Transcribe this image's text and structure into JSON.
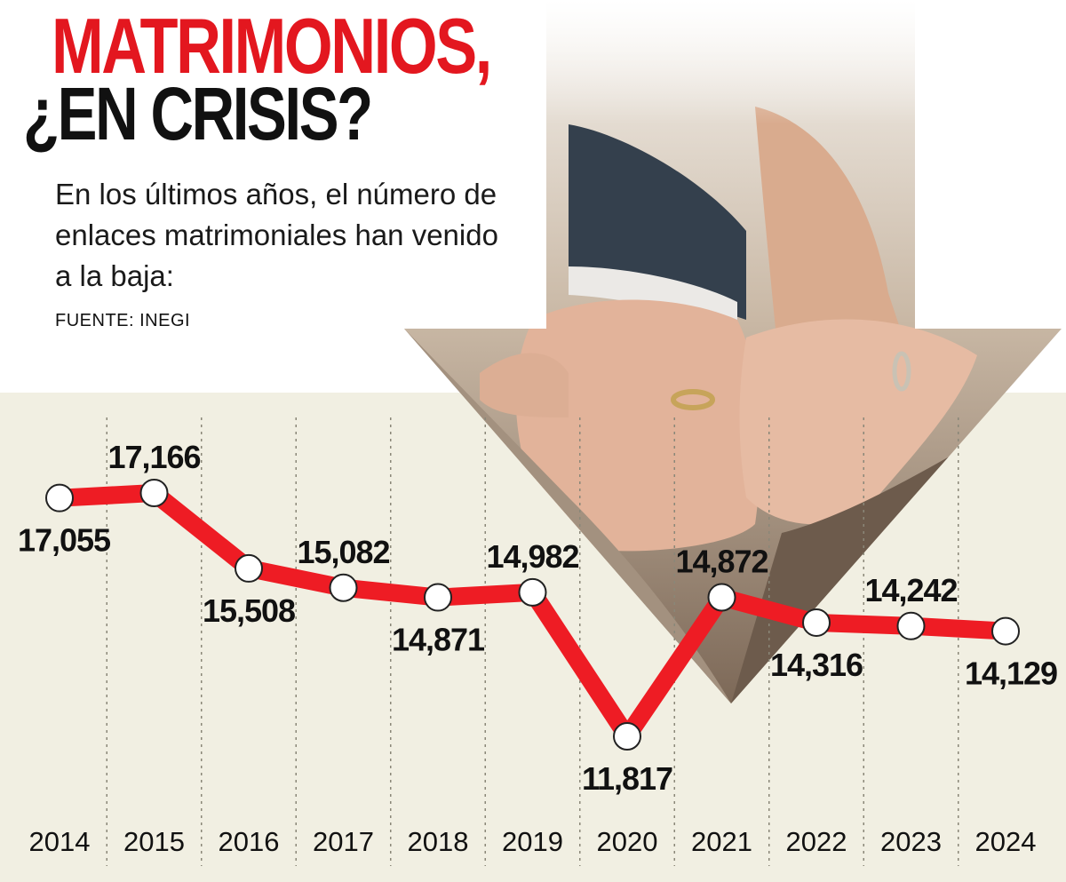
{
  "header": {
    "title_line1": "MATRIMONIOS,",
    "title_line2": "¿EN CRISIS?",
    "subtitle": "En los últimos años, el número de enlaces matrimoniales han venido a la baja:",
    "source": "FUENTE: INEGI"
  },
  "colors": {
    "accent": "#e3171f",
    "line": "#ee1c24",
    "chart_bg": "#f1efe2",
    "text": "#111111"
  },
  "chart_data": {
    "type": "line",
    "title": "MATRIMONIOS, ¿EN CRISIS?",
    "xlabel": "",
    "ylabel": "",
    "grid": false,
    "x": [
      "2014",
      "2015",
      "2016",
      "2017",
      "2018",
      "2019",
      "2020",
      "2021",
      "2022",
      "2023",
      "2024"
    ],
    "values": [
      17055,
      17166,
      15508,
      15082,
      14871,
      14982,
      11817,
      14872,
      14316,
      14242,
      14129
    ],
    "labels": [
      "17,055",
      "17,166",
      "15,508",
      "15,082",
      "14,871",
      "14,982",
      "11,817",
      "14,872",
      "14,316",
      "14,242",
      "14,129"
    ],
    "label_position": [
      "below",
      "above",
      "below",
      "above",
      "below",
      "above",
      "below",
      "above",
      "below",
      "above",
      "below"
    ]
  }
}
